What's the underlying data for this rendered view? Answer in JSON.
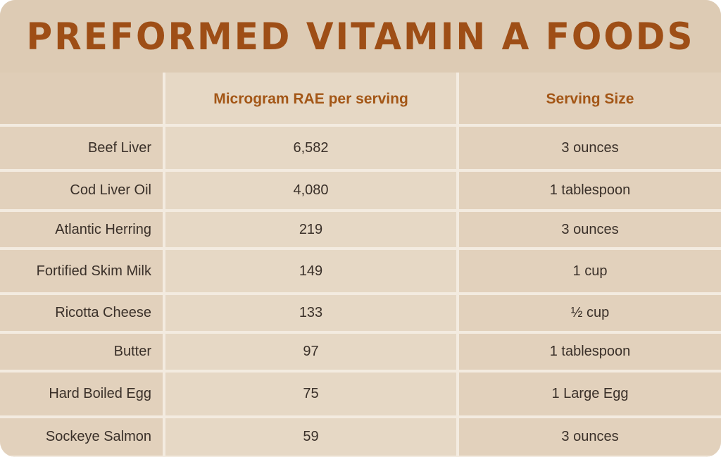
{
  "title": "PREFORMED VITAMIN A FOODS",
  "table": {
    "headers": [
      "",
      "Microgram RAE per serving",
      "Serving Size"
    ],
    "rows": [
      {
        "food": "Beef Liver",
        "rae": "6,582",
        "serving": "3 ounces"
      },
      {
        "food": "Cod Liver Oil",
        "rae": "4,080",
        "serving": "1 tablespoon"
      },
      {
        "food": "Atlantic Herring",
        "rae": "219",
        "serving": "3 ounces"
      },
      {
        "food": "Fortified Skim Milk",
        "rae": "149",
        "serving": "1 cup"
      },
      {
        "food": "Ricotta Cheese",
        "rae": "133",
        "serving": "½ cup"
      },
      {
        "food": "Butter",
        "rae": "97",
        "serving": "1 tablespoon"
      },
      {
        "food": "Hard Boiled Egg",
        "rae": "75",
        "serving": "1 Large Egg"
      },
      {
        "food": "Sockeye Salmon",
        "rae": "59",
        "serving": "3 ounces"
      }
    ]
  },
  "colors": {
    "background": "#ddcbb4",
    "title": "#9e4e16",
    "header_text": "#a35616",
    "body_text": "#3a3029",
    "divider": "#f3ebe0"
  }
}
